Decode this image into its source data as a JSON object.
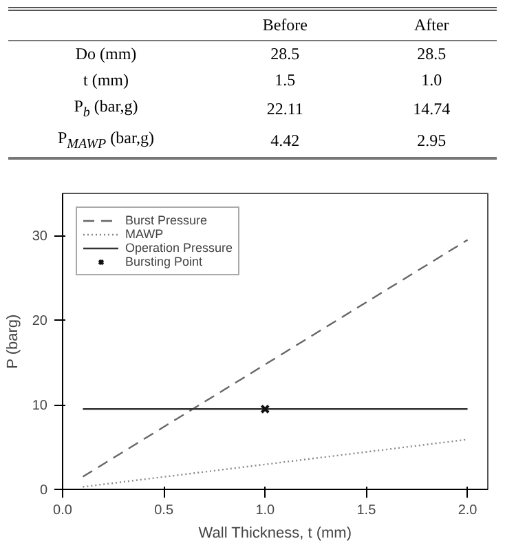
{
  "chart_data": [
    {
      "type": "other",
      "categories": [
        "Before",
        "After"
      ],
      "y_categories": [
        "Do (mm)",
        "t (mm)",
        "P$_{b}$ (bar,g)",
        "P$_{MAWP}$ (bar,g)"
      ],
      "cell_labels": [
        [
          "28.5",
          "28.5"
        ],
        [
          "1.5",
          "1.0"
        ],
        [
          "22.11",
          "14.74"
        ],
        [
          "4.42",
          "2.95"
        ]
      ]
    },
    {
      "type": "line",
      "xlabel": "Wall Thickness, t (mm)",
      "ylabel": "P (barg)",
      "xlim": [
        0,
        2.1
      ],
      "ylim": [
        0,
        35
      ],
      "xticks": [
        {
          "value": 0,
          "label": "0.0"
        },
        0.5,
        {
          "value": 1,
          "label": "1.0"
        },
        1.5,
        {
          "value": 2,
          "label": "2.0"
        }
      ],
      "yticks": [
        0,
        10,
        20,
        30
      ],
      "legend": "top left",
      "grid": false,
      "series": [
        {
          "name": "Burst Pressure",
          "color": "#666666",
          "line_style": "dashed",
          "x": [
            0.1,
            2.0
          ],
          "values": [
            1.5,
            29.5
          ]
        },
        {
          "name": "MAWP",
          "color": "#888888",
          "line_style": "dotted",
          "x": [
            0.1,
            2.0
          ],
          "values": [
            0.3,
            5.9
          ]
        },
        {
          "name": "Operation Pressure",
          "color": "#333333",
          "line_style": "solid",
          "x": [
            0.1,
            2.0
          ],
          "values": [
            9.5,
            9.5
          ]
        },
        {
          "name": "Bursting Point",
          "type": "scatter",
          "marker": "cross",
          "color": "#111111",
          "x": [
            1.0
          ],
          "values": [
            9.5
          ]
        }
      ]
    }
  ]
}
